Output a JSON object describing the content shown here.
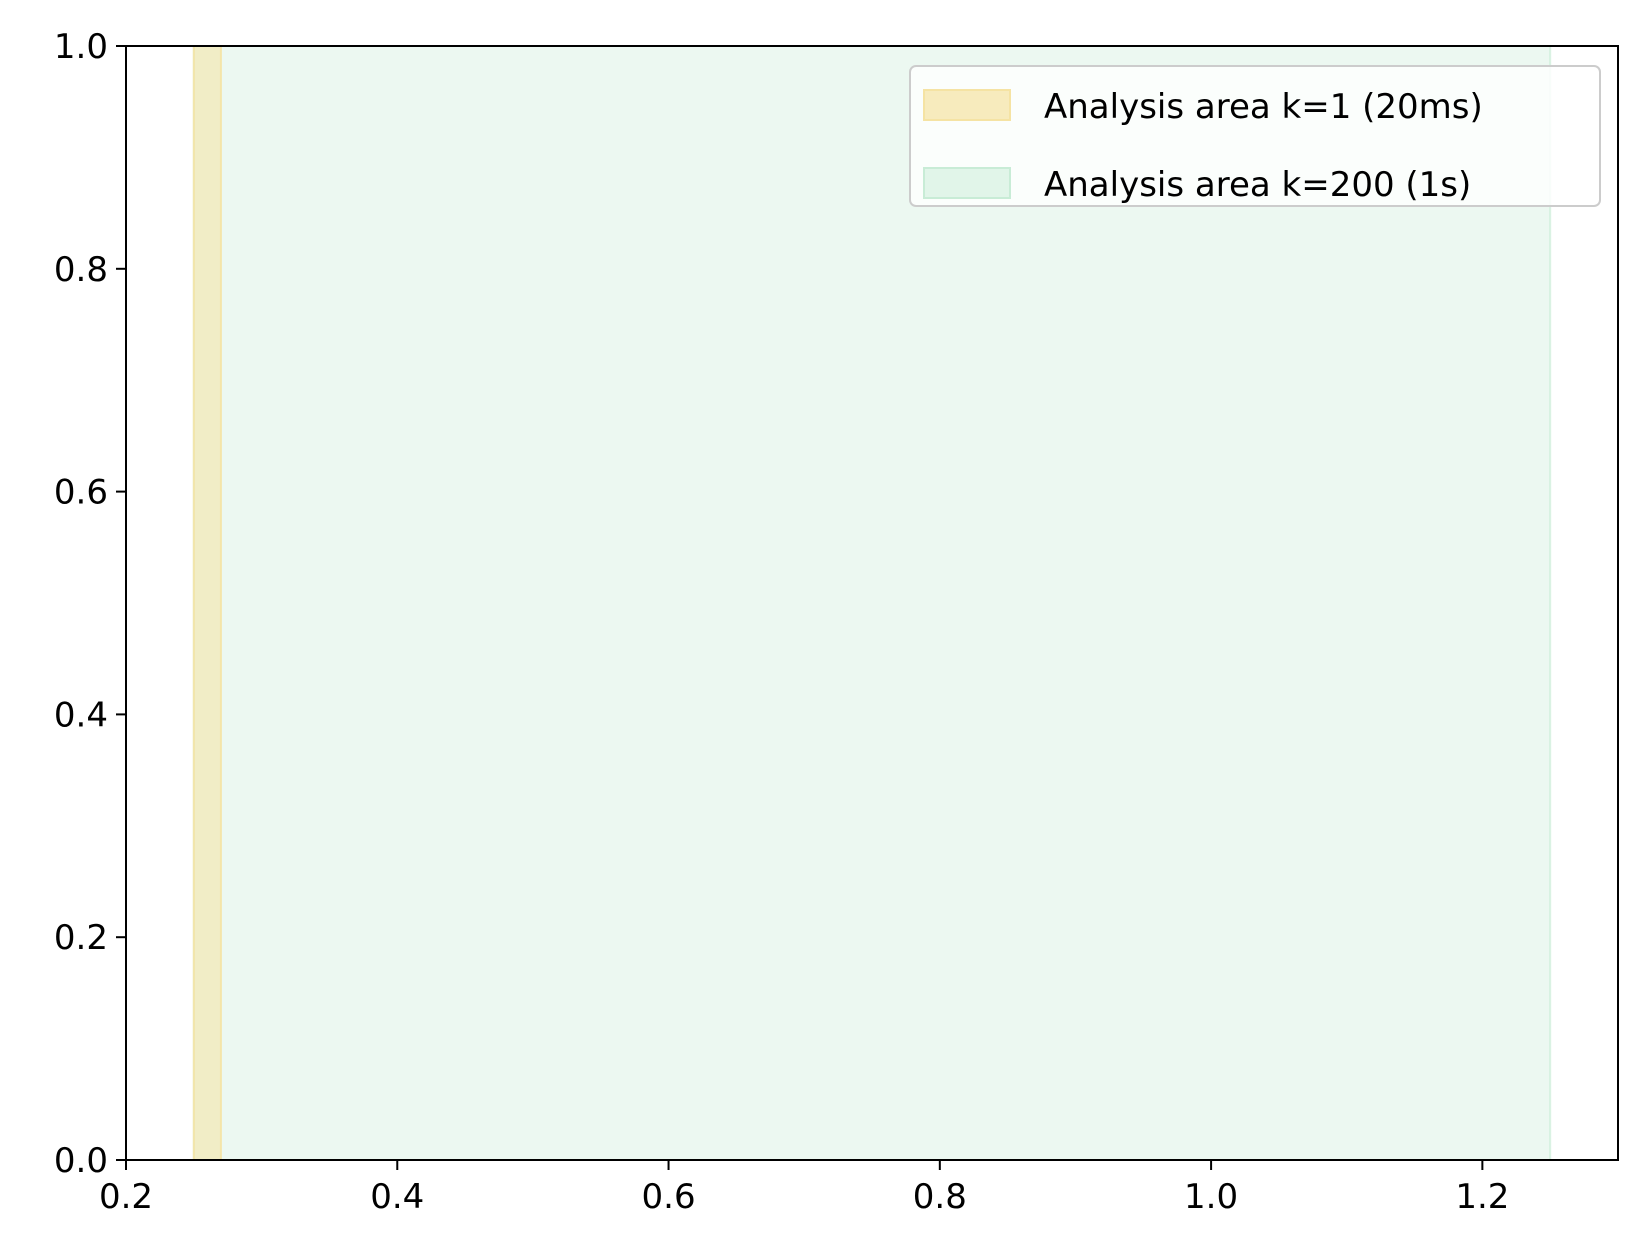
{
  "chart_data": {
    "type": "area",
    "title": "",
    "xlabel": "",
    "ylabel": "",
    "xlim": [
      0.2,
      1.3
    ],
    "ylim": [
      0.0,
      1.0
    ],
    "xticks": [
      0.2,
      0.4,
      0.6,
      0.8,
      1.0,
      1.2
    ],
    "xtick_labels": [
      "0.2",
      "0.4",
      "0.6",
      "0.8",
      "1.0",
      "1.2"
    ],
    "yticks": [
      0.0,
      0.2,
      0.4,
      0.6,
      0.8,
      1.0
    ],
    "ytick_labels": [
      "0.0",
      "0.2",
      "0.4",
      "0.6",
      "0.8",
      "1.0"
    ],
    "grid": false,
    "legend_position": "top-right",
    "series": [
      {
        "name": "Analysis area k=1 (20ms)",
        "x_start": 0.25,
        "x_end": 0.27,
        "color": "#f5e3a3",
        "opacity": 0.55
      },
      {
        "name": "Analysis area k=200 (1s)",
        "x_start": 0.25,
        "x_end": 1.25,
        "color": "#c8ecd6",
        "opacity": 0.35
      }
    ]
  }
}
